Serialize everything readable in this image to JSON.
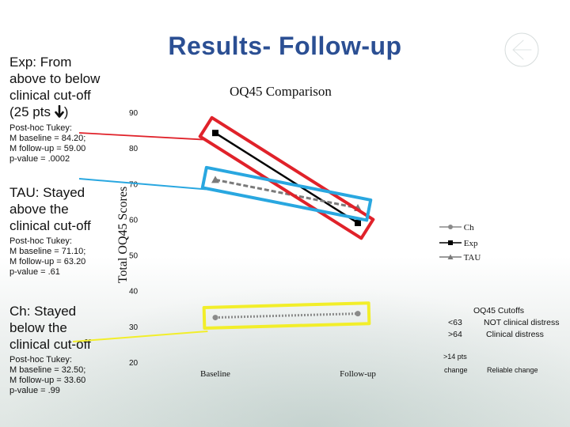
{
  "slide": {
    "title": "Results- Follow-up",
    "back_icon": "back-arrow-circle-icon"
  },
  "side": {
    "exp": {
      "heading_lines": [
        "Exp: From",
        "above to below",
        "clinical cut-off"
      ],
      "heading_pts": "(25 pts",
      "heading_close": ")",
      "arrow_icon": "down-arrow-icon",
      "detail_lines": [
        "Post-hoc Tukey:",
        "M baseline = 84.20;",
        "M follow-up = 59.00",
        "p-value = .0002"
      ]
    },
    "tau": {
      "heading_lines": [
        "TAU: Stayed",
        "above the",
        "clinical cut-off"
      ],
      "detail_lines": [
        "Post-hoc Tukey:",
        "M baseline = 71.10;",
        "M follow-up = 63.20",
        "p-value = .61"
      ]
    },
    "ch": {
      "heading_lines": [
        "Ch: Stayed",
        "below the",
        "clinical cut-off"
      ],
      "detail_lines": [
        "Post-hoc Tukey:",
        "M baseline = 32.50;",
        "M follow-up = 33.60",
        "p-value = .99"
      ]
    }
  },
  "chart_data": {
    "type": "line",
    "title": "OQ45 Comparison",
    "ylabel": "Total OQ45 Scores",
    "xlabel": "",
    "categories": [
      "Baseline",
      "Follow-up"
    ],
    "y_ticks": [
      20,
      30,
      40,
      50,
      60,
      70,
      80,
      90
    ],
    "ylim": [
      20,
      90
    ],
    "grid": false,
    "legend_position": "right",
    "series": [
      {
        "name": "Ch",
        "values": [
          32.5,
          33.6
        ],
        "color": "#8a8a8a",
        "marker": "circle",
        "style": "dotted"
      },
      {
        "name": "Exp",
        "values": [
          84.2,
          59.0
        ],
        "color": "#000000",
        "marker": "square",
        "style": "solid"
      },
      {
        "name": "TAU",
        "values": [
          71.1,
          63.2
        ],
        "color": "#7a7a7a",
        "marker": "triangle",
        "style": "dashed"
      }
    ],
    "highlights": [
      {
        "target": "Exp",
        "color": "#e0222a"
      },
      {
        "target": "TAU",
        "color": "#29a7e0"
      },
      {
        "target": "Ch",
        "color": "#f2ee2a"
      }
    ]
  },
  "cutoffs": {
    "title": "OQ45 Cutoffs",
    "rows": [
      {
        "range": "<63",
        "meaning": "NOT clinical distress"
      },
      {
        "range": ">64",
        "meaning": "Clinical distress"
      }
    ],
    "change_label": ">14 pts",
    "change_word": "change",
    "change_meaning": "Reliable change"
  }
}
